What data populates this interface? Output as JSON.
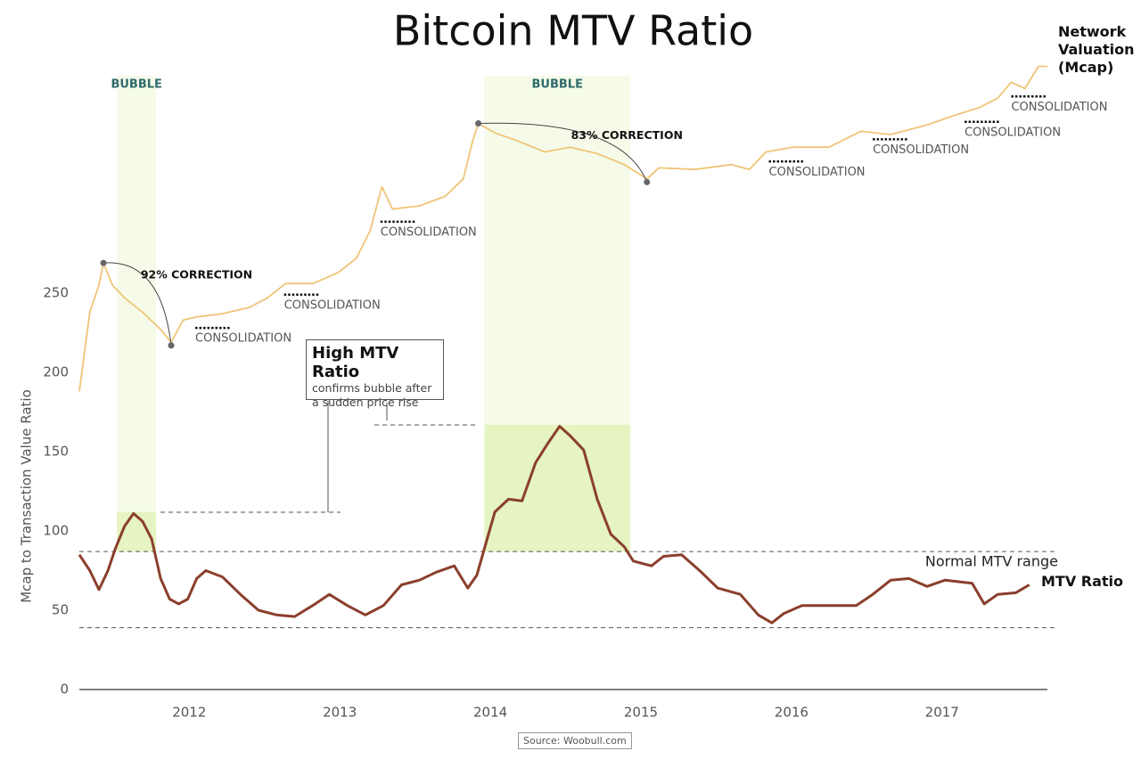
{
  "chart_data": {
    "type": "line",
    "title": "Bitcoin MTV Ratio",
    "ylabel": "Mcap to Transaction Value Ratio",
    "source": "Source: Woobull.com",
    "xlim": [
      2011.27,
      2017.7
    ],
    "xticks": [
      2012,
      2013,
      2014,
      2015,
      2016,
      2017
    ],
    "ylim": [
      0,
      400
    ],
    "yticks": [
      0,
      50,
      100,
      150,
      200,
      250
    ],
    "series": [
      {
        "name": "MTV Ratio",
        "color": "#8b3f2c",
        "x": [
          2011.27,
          2011.34,
          2011.4,
          2011.46,
          2011.51,
          2011.57,
          2011.63,
          2011.69,
          2011.75,
          2011.81,
          2011.87,
          2011.93,
          2011.99,
          2012.05,
          2012.11,
          2012.22,
          2012.34,
          2012.46,
          2012.58,
          2012.7,
          2012.82,
          2012.93,
          2013.05,
          2013.17,
          2013.29,
          2013.41,
          2013.53,
          2013.64,
          2013.76,
          2013.85,
          2013.91,
          2013.97,
          2014.03,
          2014.12,
          2014.21,
          2014.3,
          2014.38,
          2014.46,
          2014.53,
          2014.62,
          2014.71,
          2014.8,
          2014.89,
          2014.95,
          2015.07,
          2015.15,
          2015.27,
          2015.39,
          2015.51,
          2015.66,
          2015.78,
          2015.87,
          2015.95,
          2016.07,
          2016.19,
          2016.31,
          2016.43,
          2016.54,
          2016.66,
          2016.78,
          2016.9,
          2017.02,
          2017.2,
          2017.28,
          2017.37,
          2017.49,
          2017.58
        ],
        "values": [
          85,
          75,
          63,
          75,
          89,
          103,
          111,
          106,
          95,
          70,
          57,
          54,
          57,
          70,
          75,
          71,
          60,
          50,
          47,
          46,
          53,
          60,
          53,
          47,
          53,
          66,
          69,
          74,
          78,
          64,
          72,
          92,
          112,
          120,
          119,
          143,
          155,
          166,
          160,
          151,
          120,
          98,
          90,
          81,
          78,
          84,
          85,
          75,
          64,
          60,
          47,
          42,
          48,
          53,
          53,
          53,
          53,
          60,
          69,
          70,
          65,
          69,
          67,
          54,
          60,
          61,
          66
        ]
      },
      {
        "name": "Network Valuation (Mcap)",
        "color": "#f0c477",
        "x": [
          2011.27,
          2011.34,
          2011.4,
          2011.43,
          2011.49,
          2011.57,
          2011.69,
          2011.81,
          2011.88,
          2011.96,
          2012.05,
          2012.22,
          2012.4,
          2012.52,
          2012.64,
          2012.82,
          2012.99,
          2013.11,
          2013.2,
          2013.28,
          2013.35,
          2013.53,
          2013.7,
          2013.82,
          2013.88,
          2013.92,
          2014.03,
          2014.18,
          2014.36,
          2014.53,
          2014.71,
          2014.89,
          2015.04,
          2015.12,
          2015.36,
          2015.6,
          2015.72,
          2015.83,
          2016.01,
          2016.25,
          2016.46,
          2016.66,
          2016.9,
          2017.08,
          2017.25,
          2017.37,
          2017.46,
          2017.55,
          2017.64,
          2017.7
        ],
        "values": [
          188,
          238,
          255,
          269,
          255,
          247,
          238,
          227,
          219,
          233,
          235,
          237,
          241,
          247,
          256,
          256,
          263,
          272,
          289,
          317,
          303,
          305,
          311,
          322,
          345,
          357,
          351,
          346,
          339,
          342,
          338,
          331,
          322,
          329,
          328,
          331,
          328,
          339,
          342,
          342,
          352,
          350,
          356,
          362,
          367,
          373,
          383,
          379,
          393,
          393
        ]
      }
    ],
    "normal_range": {
      "label": "Normal MTV range",
      "values": [
        39,
        87
      ]
    },
    "bubbles": [
      {
        "label": "BUBBLE",
        "x": [
          2011.52,
          2011.78
        ],
        "top": 387,
        "peak": 112
      },
      {
        "label": "BUBBLE",
        "x": [
          2013.96,
          2014.93
        ],
        "top": 387,
        "peak": 167
      }
    ],
    "corrections": [
      {
        "label": "92% CORRECTION",
        "x": [
          2011.43,
          2011.88
        ],
        "y": [
          269,
          217
        ]
      },
      {
        "label": "83% CORRECTION",
        "x": [
          2013.92,
          2015.04
        ],
        "y": [
          357,
          320
        ]
      }
    ],
    "consolidations": [
      {
        "label": "CONSOLIDATION",
        "x": 2012.04,
        "y": 228
      },
      {
        "label": "CONSOLIDATION",
        "x": 2012.63,
        "y": 249
      },
      {
        "label": "CONSOLIDATION",
        "x": 2013.27,
        "y": 295
      },
      {
        "label": "CONSOLIDATION",
        "x": 2015.85,
        "y": 333
      },
      {
        "label": "CONSOLIDATION",
        "x": 2016.54,
        "y": 347
      },
      {
        "label": "CONSOLIDATION",
        "x": 2017.15,
        "y": 358
      },
      {
        "label": "CONSOLIDATION",
        "x": 2017.46,
        "y": 374
      }
    ],
    "callout": {
      "title": "High MTV Ratio",
      "lines": [
        "confirms bubble after",
        "a sudden price rise"
      ]
    }
  }
}
